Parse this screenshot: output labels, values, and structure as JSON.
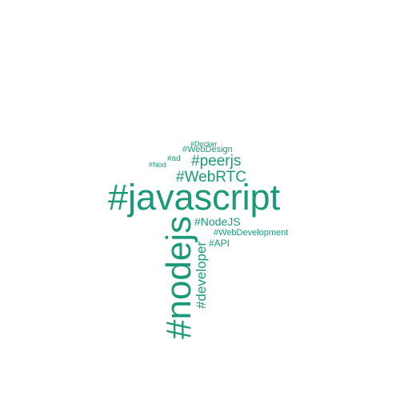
{
  "accent_color": "#1a9a78",
  "words": {
    "javascript": "#javascript",
    "nodejs_big": "#nodejs",
    "webrtc": "#WebRTC",
    "peerjs": "#peerjs",
    "nodejs_small": "#NodeJS",
    "developer": "#developer",
    "webdevelopment": "#WebDevelopment",
    "api": "#API",
    "webdesign": "#WebDesign",
    "docker": "#Docker",
    "ad": "#ad",
    "nod": "#Nod"
  }
}
